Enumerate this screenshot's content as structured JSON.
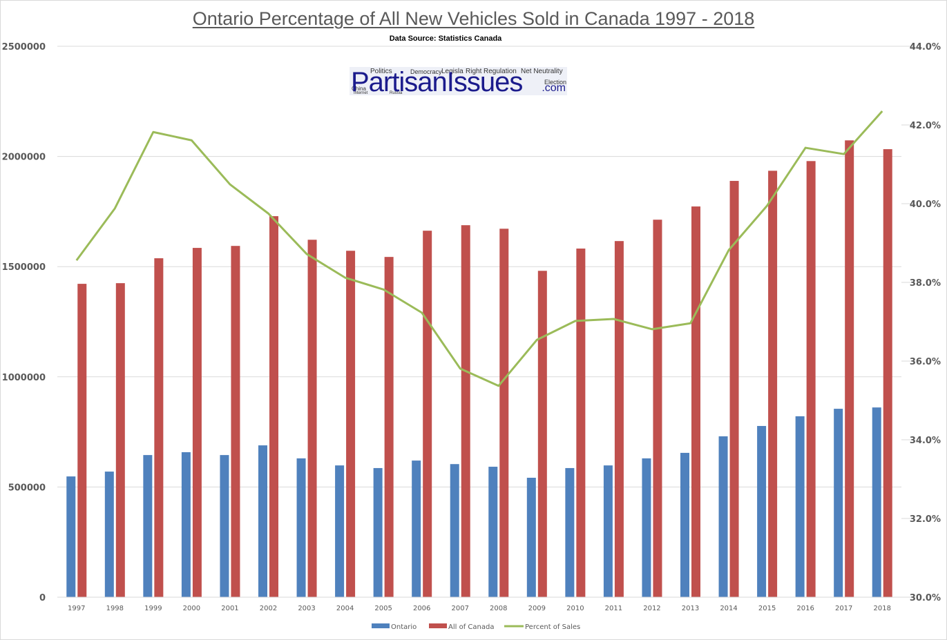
{
  "chart_data": {
    "type": "bar",
    "title": "Ontario Percentage of All New Vehicles Sold in Canada 1997 - 2018",
    "subtitle": "Data Source: Statistics Canada",
    "watermark": {
      "main": "PartisanIssues",
      "suffix": ".com",
      "tags": [
        "Politics",
        "Democracy",
        "Legisla",
        "Right",
        "Regulation",
        "Net Neutrality",
        "Election",
        "China",
        "Internet",
        "Russia"
      ]
    },
    "xlabel": "",
    "ylabel": "",
    "categories": [
      "1997",
      "1998",
      "1999",
      "2000",
      "2001",
      "2002",
      "2003",
      "2004",
      "2005",
      "2006",
      "2007",
      "2008",
      "2009",
      "2010",
      "2011",
      "2012",
      "2013",
      "2014",
      "2015",
      "2016",
      "2017",
      "2018"
    ],
    "series": [
      {
        "name": "Ontario",
        "type": "bar",
        "axis": "left",
        "color": "#4f81bd",
        "values": [
          548000,
          570000,
          645000,
          658000,
          645000,
          689000,
          630000,
          598000,
          586000,
          620000,
          604000,
          592000,
          542000,
          586000,
          598000,
          630000,
          655000,
          730000,
          777000,
          821000,
          855000,
          861000
        ]
      },
      {
        "name": "All of Canada",
        "type": "bar",
        "axis": "left",
        "color": "#c0504d",
        "values": [
          1422000,
          1425000,
          1538000,
          1585000,
          1594000,
          1729000,
          1622000,
          1572000,
          1544000,
          1663000,
          1688000,
          1672000,
          1481000,
          1582000,
          1616000,
          1713000,
          1773000,
          1889000,
          1935000,
          1979000,
          2073000,
          2033000
        ]
      },
      {
        "name": "Percent of Sales",
        "type": "line",
        "axis": "right",
        "color": "#9bbb59",
        "values": [
          38.56,
          39.88,
          41.82,
          41.61,
          40.49,
          39.75,
          38.72,
          38.12,
          37.82,
          37.23,
          35.81,
          35.37,
          36.54,
          37.02,
          37.07,
          36.81,
          36.96,
          38.82,
          39.95,
          41.42,
          41.26,
          42.35
        ]
      }
    ],
    "y_left": {
      "ylim": [
        0,
        2500000
      ],
      "ticks": [
        0,
        500000,
        1000000,
        1500000,
        2000000,
        2500000
      ],
      "tick_labels": [
        "0",
        "500000",
        "1000000",
        "1500000",
        "2000000",
        "2500000"
      ]
    },
    "y_right": {
      "ylim": [
        30,
        44
      ],
      "ticks": [
        30,
        32,
        34,
        36,
        38,
        40,
        42,
        44
      ],
      "tick_labels": [
        "30.0%",
        "32.0%",
        "34.0%",
        "36.0%",
        "38.0%",
        "40.0%",
        "42.0%",
        "44.0%"
      ]
    },
    "grid": true,
    "legend": {
      "position": "bottom",
      "entries": [
        "Ontario",
        "All of Canada",
        "Percent of Sales"
      ]
    }
  }
}
